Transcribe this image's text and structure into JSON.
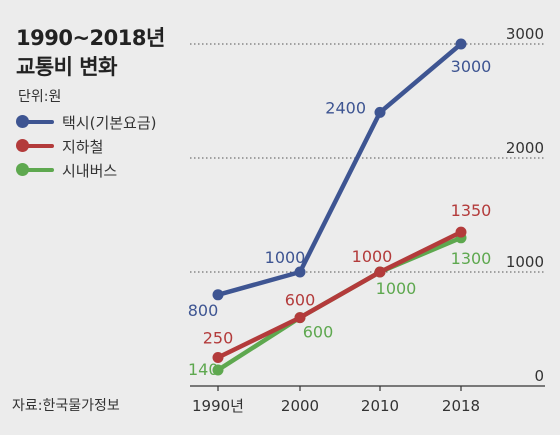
{
  "title_lines": [
    "1990~2018년",
    "교통비 변화"
  ],
  "unit": "단위:원",
  "source": "자료:한국물가정보",
  "chart_data": {
    "type": "line",
    "categories": [
      "1990년",
      "2000",
      "2010",
      "2018"
    ],
    "ylim": [
      0,
      3000
    ],
    "y_ticks": [
      {
        "value": 0,
        "label": "0"
      },
      {
        "value": 1000,
        "label": "1000"
      },
      {
        "value": 2000,
        "label": "2000"
      },
      {
        "value": 3000,
        "label": "3000"
      }
    ],
    "grid": "dotted horizontal at 1000, 2000, 3000",
    "legend_position": "left",
    "series": [
      {
        "name": "택시(기본요금)",
        "color": "#3e5592",
        "values": [
          800,
          1000,
          2400,
          3000
        ],
        "labels": [
          "800",
          "1000",
          "2400",
          "3000"
        ]
      },
      {
        "name": "지하철",
        "color": "#b33b3b",
        "values": [
          250,
          600,
          1000,
          1350
        ],
        "labels": [
          "250",
          "600",
          "1000",
          "1350"
        ]
      },
      {
        "name": "시내버스",
        "color": "#5ea84f",
        "values": [
          140,
          600,
          1000,
          1300
        ],
        "labels": [
          "140",
          "600",
          "1000",
          "1300"
        ]
      }
    ]
  }
}
